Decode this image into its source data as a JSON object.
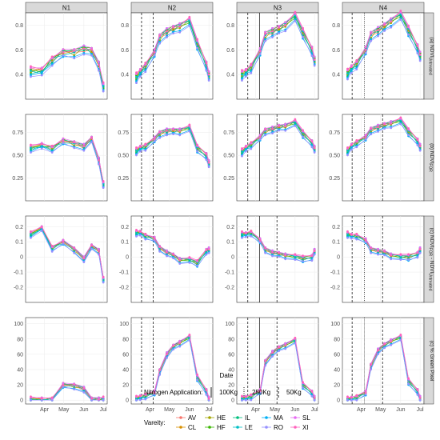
{
  "chart_data": {
    "type": "line",
    "columns": [
      "N1",
      "N2",
      "N3",
      "N4"
    ],
    "rows": [
      {
        "label_main": "(a) NDVI",
        "label_sub": "Untreated",
        "ylim": [
          0.2,
          0.9
        ],
        "ticks": [
          0.4,
          0.6,
          0.8
        ],
        "tick_labels": [
          "0.4",
          "0.6",
          "0.8"
        ]
      },
      {
        "label_main": "(b) NDVI",
        "label_sub": "FOR",
        "ylim": [
          0.0,
          0.95
        ],
        "ticks": [
          0.25,
          0.5,
          0.75
        ],
        "tick_labels": [
          "0.25",
          "0.50",
          "0.75"
        ]
      },
      {
        "label_main": "(c) NDVI",
        "label_sub": "FOR",
        "label_main2": " - NDVI",
        "label_sub2": "Untreated",
        "ylim": [
          -0.3,
          0.27
        ],
        "ticks": [
          -0.2,
          -0.1,
          0.0,
          0.1,
          0.2
        ],
        "tick_labels": [
          "-0.2",
          "-0.1",
          "0",
          "0.1",
          "0.2"
        ]
      },
      {
        "label_main": "(c) % Green Pixel",
        "label_sub": "",
        "ylim": [
          -5,
          108
        ],
        "ticks": [
          0,
          20,
          40,
          60,
          80,
          100
        ],
        "tick_labels": [
          "0",
          "20",
          "40",
          "60",
          "80",
          "100"
        ]
      }
    ],
    "x_ticks": [
      {
        "label": "Apr",
        "doy": 91
      },
      {
        "label": "May",
        "doy": 121
      },
      {
        "label": "Jun",
        "doy": 152
      },
      {
        "label": "Jul",
        "doy": 182
      }
    ],
    "xlim_doy": [
      62,
      188
    ],
    "xlabel": "Date",
    "sample_doy": {
      "N1": [
        70,
        87,
        103,
        120,
        137,
        152,
        164,
        175,
        182
      ],
      "N2": [
        70,
        76,
        84,
        98,
        106,
        117,
        127,
        137,
        152,
        164,
        178,
        182
      ],
      "N3": [
        70,
        76,
        84,
        98,
        106,
        117,
        127,
        137,
        152,
        164,
        178,
        182
      ],
      "N4": [
        70,
        76,
        84,
        98,
        106,
        117,
        127,
        137,
        152,
        164,
        178,
        182
      ]
    },
    "mean_values": {
      "N1": [
        [
          0.43,
          0.43,
          0.52,
          0.58,
          0.58,
          0.61,
          0.59,
          0.48,
          0.3
        ],
        [
          0.58,
          0.61,
          0.58,
          0.66,
          0.63,
          0.6,
          0.68,
          0.45,
          0.18
        ],
        [
          0.15,
          0.19,
          0.06,
          0.1,
          0.05,
          -0.01,
          0.07,
          0.04,
          -0.15
        ],
        [
          1,
          1,
          1,
          20,
          19,
          15,
          1,
          1,
          1
        ]
      ],
      "N2": [
        [
          0.38,
          0.42,
          0.47,
          0.58,
          0.7,
          0.75,
          0.77,
          0.79,
          0.83,
          0.65,
          0.48,
          0.4
        ],
        [
          0.55,
          0.58,
          0.6,
          0.68,
          0.74,
          0.77,
          0.77,
          0.77,
          0.8,
          0.58,
          0.5,
          0.42
        ],
        [
          0.16,
          0.16,
          0.14,
          0.12,
          0.06,
          0.03,
          0.01,
          -0.02,
          -0.02,
          -0.04,
          0.04,
          0.05
        ],
        [
          2,
          4,
          6,
          10,
          38,
          60,
          70,
          75,
          82,
          30,
          12,
          2
        ]
      ],
      "N3": [
        [
          0.4,
          0.42,
          0.46,
          0.59,
          0.72,
          0.75,
          0.77,
          0.8,
          0.87,
          0.74,
          0.6,
          0.52
        ],
        [
          0.54,
          0.58,
          0.62,
          0.7,
          0.77,
          0.79,
          0.81,
          0.82,
          0.86,
          0.74,
          0.64,
          0.58
        ],
        [
          0.15,
          0.15,
          0.16,
          0.11,
          0.05,
          0.03,
          0.02,
          0.01,
          0.0,
          -0.01,
          0.0,
          0.04
        ],
        [
          2,
          3,
          5,
          12,
          50,
          62,
          68,
          72,
          78,
          20,
          10,
          3
        ]
      ],
      "N4": [
        [
          0.41,
          0.45,
          0.49,
          0.6,
          0.72,
          0.76,
          0.79,
          0.83,
          0.88,
          0.76,
          0.62,
          0.56
        ],
        [
          0.55,
          0.6,
          0.64,
          0.7,
          0.78,
          0.81,
          0.83,
          0.85,
          0.88,
          0.76,
          0.66,
          0.6
        ],
        [
          0.15,
          0.14,
          0.14,
          0.11,
          0.05,
          0.04,
          0.03,
          0.01,
          0.0,
          0.0,
          0.02,
          0.05
        ],
        [
          1,
          2,
          4,
          10,
          45,
          65,
          72,
          77,
          82,
          25,
          12,
          3
        ]
      ]
    },
    "series": [
      {
        "name": "AV",
        "color": "#F8766D",
        "shape": "circle"
      },
      {
        "name": "CL",
        "color": "#D89000",
        "shape": "circle"
      },
      {
        "name": "HE",
        "color": "#A3A500",
        "shape": "circle"
      },
      {
        "name": "HF",
        "color": "#39B600",
        "shape": "circle"
      },
      {
        "name": "IL",
        "color": "#00BF7D",
        "shape": "circle"
      },
      {
        "name": "LE",
        "color": "#00BFC4",
        "shape": "circle"
      },
      {
        "name": "MA",
        "color": "#00B0F6",
        "shape": "circle"
      },
      {
        "name": "RO",
        "color": "#9590FF",
        "shape": "circle"
      },
      {
        "name": "SL",
        "color": "#E76BF3",
        "shape": "circle"
      },
      {
        "name": "XI",
        "color": "#FF62BC",
        "shape": "circle"
      }
    ],
    "series_offsets": [
      [
        0.02,
        0.0,
        -0.01,
        0.01,
        0.0,
        -0.02,
        0.01,
        0.02,
        0.0,
        -0.01,
        0.0,
        0.01
      ],
      [
        0.0,
        0.01,
        0.02,
        -0.01,
        0.01,
        0.0,
        -0.01,
        0.01,
        0.02,
        0.0,
        -0.01,
        0.0
      ],
      [
        -0.01,
        0.02,
        0.0,
        0.02,
        -0.02,
        0.01,
        0.0,
        -0.01,
        0.01,
        0.02,
        0.01,
        -0.02
      ],
      [
        0.01,
        -0.01,
        0.01,
        0.0,
        0.02,
        0.01,
        0.02,
        0.0,
        -0.01,
        0.01,
        0.02,
        0.01
      ],
      [
        -0.02,
        0.0,
        -0.02,
        0.01,
        0.01,
        -0.01,
        0.01,
        0.02,
        0.0,
        -0.02,
        0.0,
        -0.01
      ],
      [
        0.0,
        -0.02,
        0.01,
        -0.02,
        0.0,
        0.02,
        -0.02,
        0.01,
        0.01,
        0.01,
        -0.02,
        0.02
      ],
      [
        -0.03,
        -0.01,
        -0.03,
        -0.03,
        -0.03,
        -0.03,
        -0.02,
        -0.03,
        -0.02,
        -0.04,
        -0.03,
        -0.03
      ],
      [
        -0.04,
        -0.03,
        -0.04,
        -0.02,
        -0.04,
        -0.04,
        -0.03,
        -0.04,
        -0.03,
        -0.03,
        -0.04,
        -0.04
      ],
      [
        0.02,
        0.02,
        0.01,
        0.02,
        0.02,
        0.02,
        0.02,
        0.02,
        0.02,
        0.02,
        0.02,
        0.02
      ],
      [
        0.03,
        0.01,
        0.02,
        0.0,
        0.01,
        0.0,
        0.01,
        0.0,
        0.03,
        0.03,
        0.01,
        0.0
      ]
    ],
    "nitrogen_lines": {
      "N1": [],
      "N2": [
        {
          "doy": 78,
          "style": "dashed"
        },
        {
          "doy": 96,
          "style": "dashed"
        }
      ],
      "N3": [
        {
          "doy": 79,
          "style": "dashed"
        },
        {
          "doy": 97,
          "style": "solid"
        },
        {
          "doy": 124,
          "style": "dashed"
        }
      ],
      "N4": [
        {
          "doy": 77,
          "style": "dashed"
        },
        {
          "doy": 96,
          "style": "dotted"
        },
        {
          "doy": 124,
          "style": "dashed"
        }
      ]
    },
    "legend_nitrogen": {
      "title": "Nitrogen Application:",
      "items": [
        {
          "label": "100Kg",
          "style": "solid"
        },
        {
          "label": "250Kg",
          "style": "dotted"
        },
        {
          "label": "50Kg",
          "style": "dashed"
        }
      ]
    },
    "legend_variety": {
      "title": "Vareity:"
    }
  }
}
